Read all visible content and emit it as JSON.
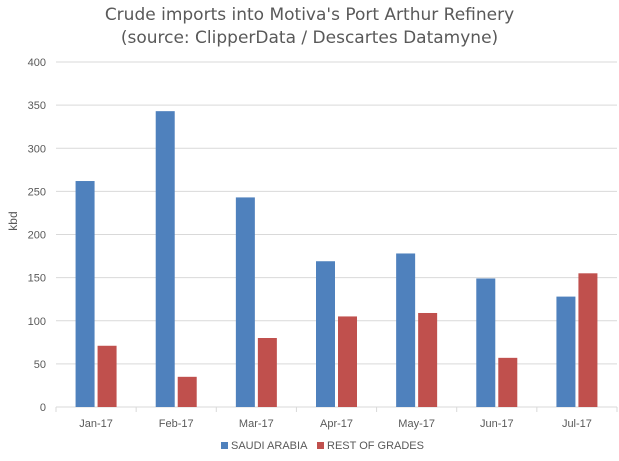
{
  "chart_data": {
    "type": "bar",
    "title": "Crude imports into Motiva's Port Arthur Refinery",
    "subtitle": "(source: ClipperData / Descartes Datamyne)",
    "xlabel": "",
    "ylabel": "kbd",
    "categories": [
      "Jan-17",
      "Feb-17",
      "Mar-17",
      "Apr-17",
      "May-17",
      "Jun-17",
      "Jul-17"
    ],
    "series": [
      {
        "name": "SAUDI ARABIA",
        "color": "#4F81BD",
        "values": [
          262,
          343,
          243,
          169,
          178,
          149,
          128
        ]
      },
      {
        "name": "REST OF GRADES",
        "color": "#C0504D",
        "values": [
          71,
          35,
          80,
          105,
          109,
          57,
          155
        ]
      }
    ],
    "ylim": [
      0,
      400
    ],
    "yticks": [
      0,
      50,
      100,
      150,
      200,
      250,
      300,
      350,
      400
    ],
    "grid": true,
    "legend_position": "bottom"
  }
}
